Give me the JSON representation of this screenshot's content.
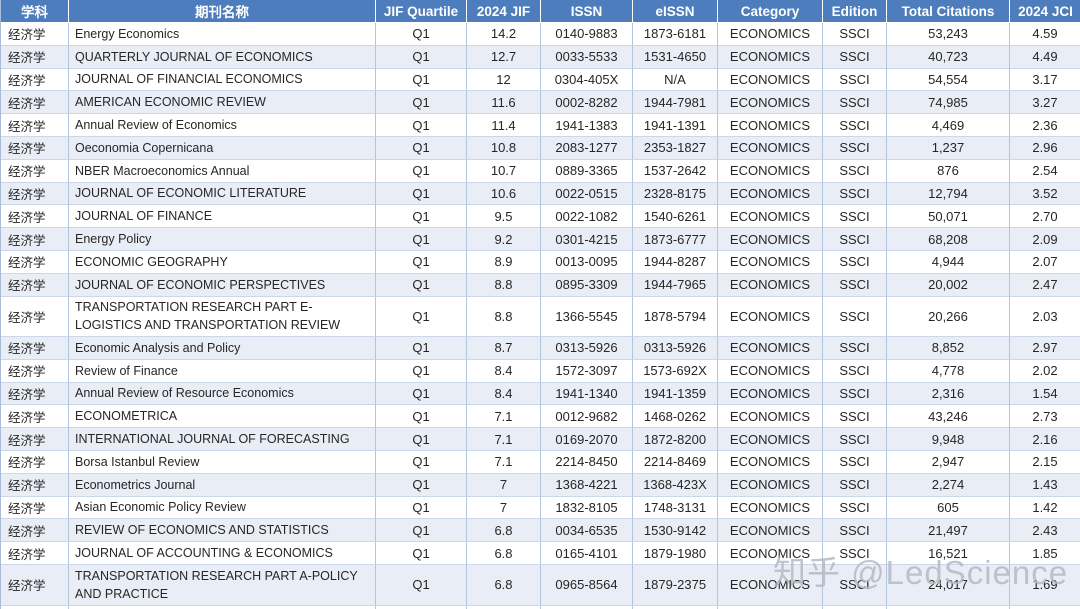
{
  "table": {
    "columns": [
      "学科",
      "期刊名称",
      "JIF Quartile",
      "2024 JIF",
      "ISSN",
      "eISSN",
      "Category",
      "Edition",
      "Total Citations",
      "2024 JCI"
    ],
    "rows": [
      {
        "subject": "经济学",
        "journal": "Energy Economics",
        "quartile": "Q1",
        "jif": "14.2",
        "issn": "0140-9883",
        "eissn": "1873-6181",
        "category": "ECONOMICS",
        "edition": "SSCI",
        "citations": "53,243",
        "jci": "4.59"
      },
      {
        "subject": "经济学",
        "journal": "QUARTERLY JOURNAL OF ECONOMICS",
        "quartile": "Q1",
        "jif": "12.7",
        "issn": "0033-5533",
        "eissn": "1531-4650",
        "category": "ECONOMICS",
        "edition": "SSCI",
        "citations": "40,723",
        "jci": "4.49"
      },
      {
        "subject": "经济学",
        "journal": "JOURNAL OF FINANCIAL ECONOMICS",
        "quartile": "Q1",
        "jif": "12",
        "issn": "0304-405X",
        "eissn": "N/A",
        "category": "ECONOMICS",
        "edition": "SSCI",
        "citations": "54,554",
        "jci": "3.17"
      },
      {
        "subject": "经济学",
        "journal": "AMERICAN ECONOMIC REVIEW",
        "quartile": "Q1",
        "jif": "11.6",
        "issn": "0002-8282",
        "eissn": "1944-7981",
        "category": "ECONOMICS",
        "edition": "SSCI",
        "citations": "74,985",
        "jci": "3.27"
      },
      {
        "subject": "经济学",
        "journal": "Annual Review of Economics",
        "quartile": "Q1",
        "jif": "11.4",
        "issn": "1941-1383",
        "eissn": "1941-1391",
        "category": "ECONOMICS",
        "edition": "SSCI",
        "citations": "4,469",
        "jci": "2.36"
      },
      {
        "subject": "经济学",
        "journal": "Oeconomia Copernicana",
        "quartile": "Q1",
        "jif": "10.8",
        "issn": "2083-1277",
        "eissn": "2353-1827",
        "category": "ECONOMICS",
        "edition": "SSCI",
        "citations": "1,237",
        "jci": "2.96"
      },
      {
        "subject": "经济学",
        "journal": "NBER Macroeconomics Annual",
        "quartile": "Q1",
        "jif": "10.7",
        "issn": "0889-3365",
        "eissn": "1537-2642",
        "category": "ECONOMICS",
        "edition": "SSCI",
        "citations": "876",
        "jci": "2.54"
      },
      {
        "subject": "经济学",
        "journal": "JOURNAL OF ECONOMIC LITERATURE",
        "quartile": "Q1",
        "jif": "10.6",
        "issn": "0022-0515",
        "eissn": "2328-8175",
        "category": "ECONOMICS",
        "edition": "SSCI",
        "citations": "12,794",
        "jci": "3.52"
      },
      {
        "subject": "经济学",
        "journal": "JOURNAL OF FINANCE",
        "quartile": "Q1",
        "jif": "9.5",
        "issn": "0022-1082",
        "eissn": "1540-6261",
        "category": "ECONOMICS",
        "edition": "SSCI",
        "citations": "50,071",
        "jci": "2.70"
      },
      {
        "subject": "经济学",
        "journal": "Energy Policy",
        "quartile": "Q1",
        "jif": "9.2",
        "issn": "0301-4215",
        "eissn": "1873-6777",
        "category": "ECONOMICS",
        "edition": "SSCI",
        "citations": "68,208",
        "jci": "2.09"
      },
      {
        "subject": "经济学",
        "journal": "ECONOMIC GEOGRAPHY",
        "quartile": "Q1",
        "jif": "8.9",
        "issn": "0013-0095",
        "eissn": "1944-8287",
        "category": "ECONOMICS",
        "edition": "SSCI",
        "citations": "4,944",
        "jci": "2.07"
      },
      {
        "subject": "经济学",
        "journal": "JOURNAL OF ECONOMIC PERSPECTIVES",
        "quartile": "Q1",
        "jif": "8.8",
        "issn": "0895-3309",
        "eissn": "1944-7965",
        "category": "ECONOMICS",
        "edition": "SSCI",
        "citations": "20,002",
        "jci": "2.47"
      },
      {
        "subject": "经济学",
        "journal": "TRANSPORTATION RESEARCH PART E-LOGISTICS AND TRANSPORTATION REVIEW",
        "quartile": "Q1",
        "jif": "8.8",
        "issn": "1366-5545",
        "eissn": "1878-5794",
        "category": "ECONOMICS",
        "edition": "SSCI",
        "citations": "20,266",
        "jci": "2.03"
      },
      {
        "subject": "经济学",
        "journal": "Economic Analysis and Policy",
        "quartile": "Q1",
        "jif": "8.7",
        "issn": "0313-5926",
        "eissn": "0313-5926",
        "category": "ECONOMICS",
        "edition": "SSCI",
        "citations": "8,852",
        "jci": "2.97"
      },
      {
        "subject": "经济学",
        "journal": "Review of Finance",
        "quartile": "Q1",
        "jif": "8.4",
        "issn": "1572-3097",
        "eissn": "1573-692X",
        "category": "ECONOMICS",
        "edition": "SSCI",
        "citations": "4,778",
        "jci": "2.02"
      },
      {
        "subject": "经济学",
        "journal": "Annual Review of Resource Economics",
        "quartile": "Q1",
        "jif": "8.4",
        "issn": "1941-1340",
        "eissn": "1941-1359",
        "category": "ECONOMICS",
        "edition": "SSCI",
        "citations": "2,316",
        "jci": "1.54"
      },
      {
        "subject": "经济学",
        "journal": "ECONOMETRICA",
        "quartile": "Q1",
        "jif": "7.1",
        "issn": "0012-9682",
        "eissn": "1468-0262",
        "category": "ECONOMICS",
        "edition": "SSCI",
        "citations": "43,246",
        "jci": "2.73"
      },
      {
        "subject": "经济学",
        "journal": "INTERNATIONAL JOURNAL OF FORECASTING",
        "quartile": "Q1",
        "jif": "7.1",
        "issn": "0169-2070",
        "eissn": "1872-8200",
        "category": "ECONOMICS",
        "edition": "SSCI",
        "citations": "9,948",
        "jci": "2.16"
      },
      {
        "subject": "经济学",
        "journal": "Borsa Istanbul Review",
        "quartile": "Q1",
        "jif": "7.1",
        "issn": "2214-8450",
        "eissn": "2214-8469",
        "category": "ECONOMICS",
        "edition": "SSCI",
        "citations": "2,947",
        "jci": "2.15"
      },
      {
        "subject": "经济学",
        "journal": "Econometrics Journal",
        "quartile": "Q1",
        "jif": "7",
        "issn": "1368-4221",
        "eissn": "1368-423X",
        "category": "ECONOMICS",
        "edition": "SSCI",
        "citations": "2,274",
        "jci": "1.43"
      },
      {
        "subject": "经济学",
        "journal": "Asian Economic Policy Review",
        "quartile": "Q1",
        "jif": "7",
        "issn": "1832-8105",
        "eissn": "1748-3131",
        "category": "ECONOMICS",
        "edition": "SSCI",
        "citations": "605",
        "jci": "1.42"
      },
      {
        "subject": "经济学",
        "journal": "REVIEW OF ECONOMICS AND STATISTICS",
        "quartile": "Q1",
        "jif": "6.8",
        "issn": "0034-6535",
        "eissn": "1530-9142",
        "category": "ECONOMICS",
        "edition": "SSCI",
        "citations": "21,497",
        "jci": "2.43"
      },
      {
        "subject": "经济学",
        "journal": "JOURNAL OF ACCOUNTING & ECONOMICS",
        "quartile": "Q1",
        "jif": "6.8",
        "issn": "0165-4101",
        "eissn": "1879-1980",
        "category": "ECONOMICS",
        "edition": "SSCI",
        "citations": "16,521",
        "jci": "1.85"
      },
      {
        "subject": "经济学",
        "journal": "TRANSPORTATION RESEARCH PART A-POLICY AND PRACTICE",
        "quartile": "Q1",
        "jif": "6.8",
        "issn": "0965-8564",
        "eissn": "1879-2375",
        "category": "ECONOMICS",
        "edition": "SSCI",
        "citations": "24,017",
        "jci": "1.69"
      }
    ]
  },
  "watermark": {
    "text": "知乎 @LedScience"
  },
  "colors": {
    "header_bg": "#4d7dbc",
    "header_text": "#ffffff",
    "band_row_bg": "#e9eef6",
    "grid_vertical": "#b3c5dc",
    "grid_horizontal": "#ccd8ea",
    "body_text": "#262626",
    "watermark_text": "#b2b8c0"
  }
}
